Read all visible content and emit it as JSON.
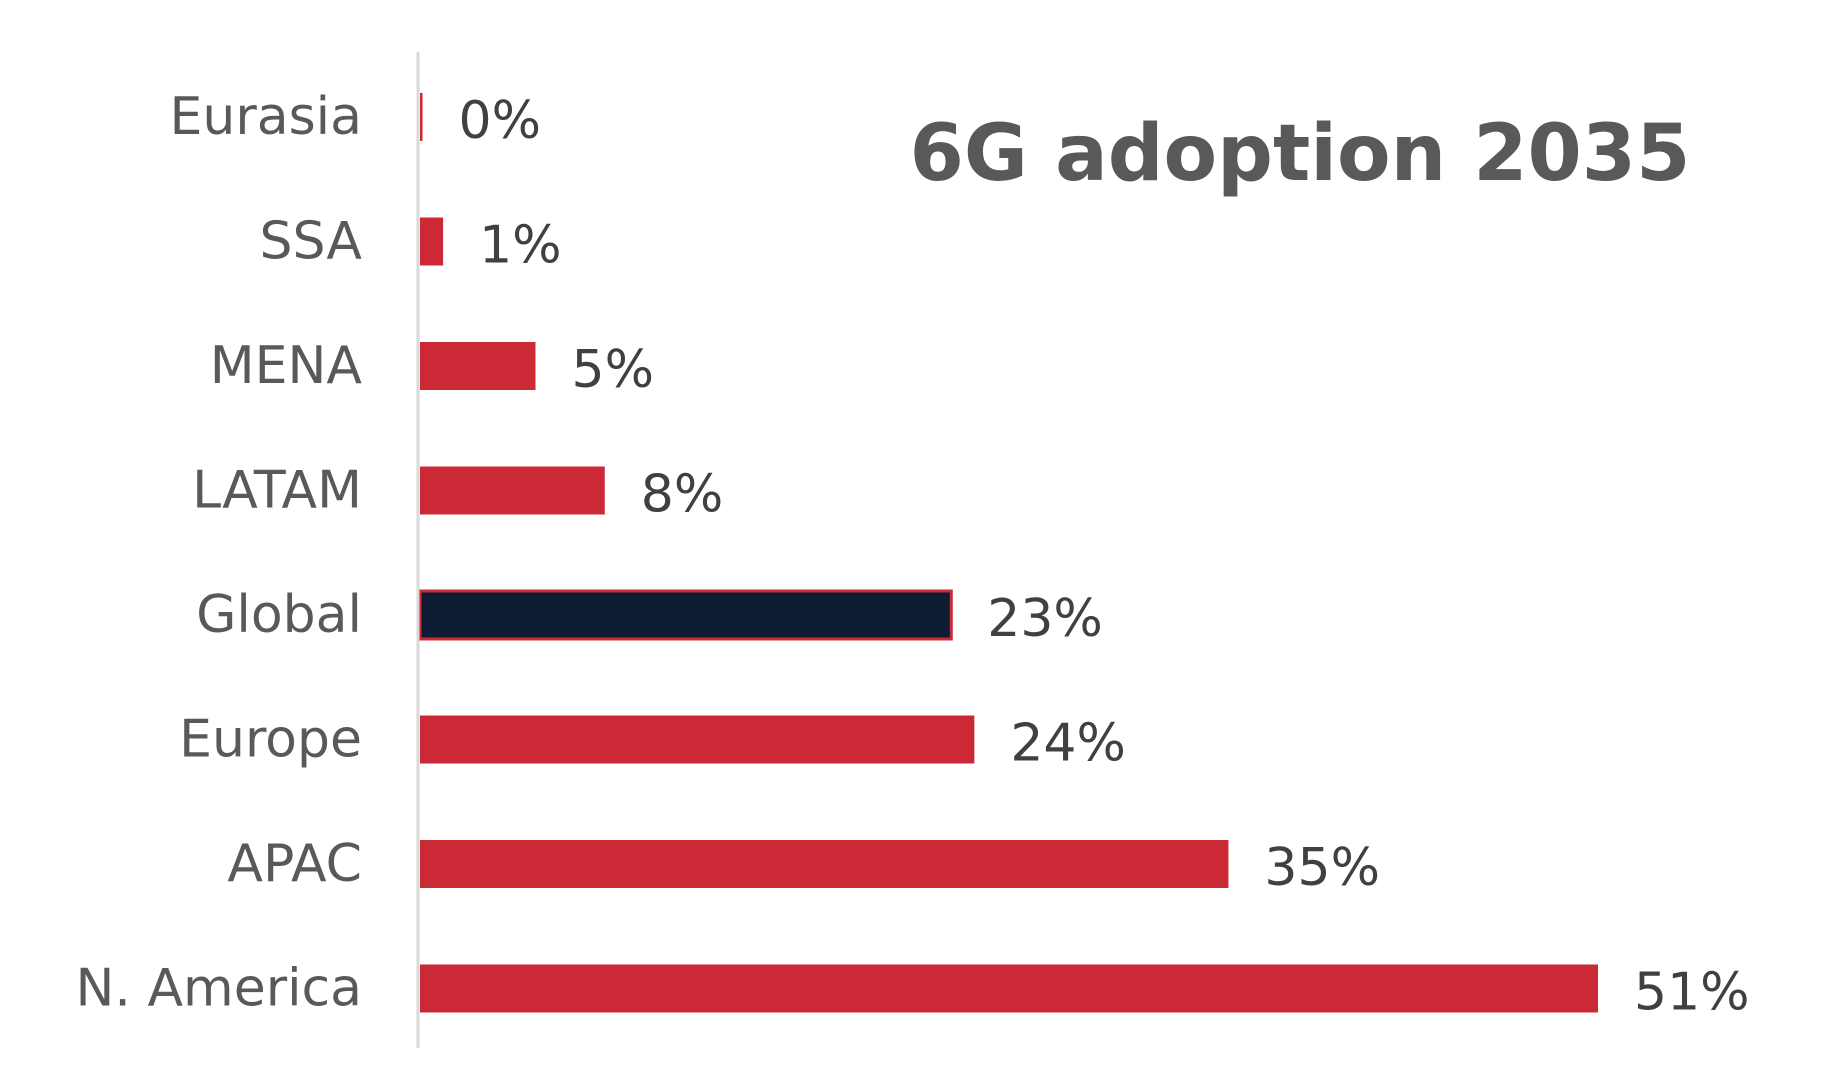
{
  "chart_data": {
    "type": "bar",
    "orientation": "horizontal",
    "title": "6G adoption 2035",
    "xlabel": "",
    "ylabel": "",
    "categories": [
      "Eurasia",
      "SSA",
      "MENA",
      "LATAM",
      "Global",
      "Europe",
      "APAC",
      "N. America"
    ],
    "values": [
      0,
      1,
      5,
      8,
      23,
      24,
      35,
      51
    ],
    "value_labels": [
      "0%",
      "1%",
      "5%",
      "8%",
      "23%",
      "24%",
      "35%",
      "51%"
    ],
    "unit": "%",
    "xlim": [
      0,
      51
    ],
    "grid": false,
    "legend": "none",
    "highlight_category": "Global",
    "colors": {
      "bar": "#cc2936",
      "highlight_bar": "#0d1b33",
      "highlight_border": "#cc2936",
      "axis": "#d9d9d9",
      "category_text": "#595959",
      "value_text": "#404040",
      "title_text": "#595959"
    }
  }
}
